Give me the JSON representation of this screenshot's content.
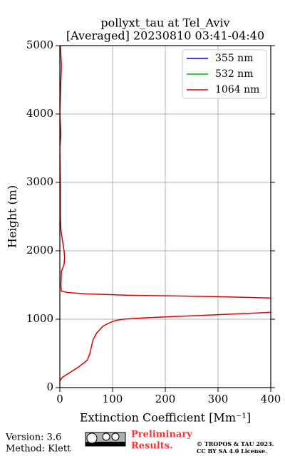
{
  "chart_data": {
    "type": "profile",
    "title": [
      "pollyxt_tau at Tel_Aviv",
      "[Averaged] 20230810 03:41-04:40"
    ],
    "xlabel": "Extinction Coefficient [Mm⁻¹]",
    "ylabel": "Height (m)",
    "y": [
      100,
      150,
      200,
      300,
      400,
      500,
      600,
      700,
      800,
      900,
      950,
      980,
      1000,
      1020,
      1050,
      1080,
      1100,
      1200,
      1310,
      1330,
      1350,
      1370,
      1390,
      1410,
      1500,
      1700,
      1800,
      1900,
      2000,
      2100,
      2200,
      2300,
      2500,
      3000,
      3500,
      3700,
      4000,
      4500,
      4700,
      5000
    ],
    "series": [
      {
        "name": "355 nm",
        "color": "#0000ff",
        "values": [
          null,
          null,
          null,
          null,
          null,
          null,
          null,
          null,
          null,
          null,
          null,
          null,
          null,
          null,
          null,
          null,
          null,
          null,
          null,
          null,
          null,
          null,
          null,
          null,
          null,
          null,
          null,
          null,
          null,
          null,
          null,
          null,
          null,
          null,
          null,
          null,
          null,
          null,
          null,
          null
        ]
      },
      {
        "name": "532 nm",
        "color": "#00b000",
        "values": [
          null,
          null,
          null,
          null,
          null,
          null,
          null,
          null,
          null,
          null,
          null,
          null,
          null,
          null,
          null,
          null,
          null,
          null,
          null,
          null,
          null,
          null,
          null,
          null,
          null,
          null,
          null,
          null,
          null,
          null,
          null,
          null,
          null,
          null,
          null,
          null,
          null,
          null,
          null,
          null
        ]
      },
      {
        "name": "1064 nm",
        "color": "#dd0000",
        "values": [
          0,
          5,
          15,
          35,
          52,
          57,
          60,
          63,
          70,
          82,
          95,
          105,
          120,
          160,
          250,
          340,
          400,
          null,
          400,
          300,
          130,
          50,
          15,
          3,
          2,
          3,
          8,
          9,
          8,
          6,
          4,
          2,
          1,
          1,
          0,
          2,
          0,
          2,
          3,
          1
        ]
      }
    ],
    "xlim": [
      0,
      400
    ],
    "xticks": [
      0,
      100,
      200,
      300,
      400
    ],
    "ylim": [
      0,
      5000
    ],
    "yticks": [
      0,
      1000,
      2000,
      3000,
      4000,
      5000
    ],
    "grid": true,
    "legend": "upper right"
  },
  "footer": {
    "version": "Version: 3.6",
    "method": "Method: Klett",
    "status": [
      "Preliminary",
      "Results."
    ],
    "copyright": [
      "© TROPOS & TAU 2023.",
      "CC BY SA 4.0 License."
    ]
  }
}
